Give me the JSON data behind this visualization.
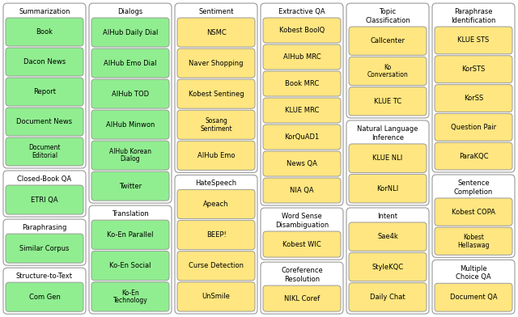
{
  "green_color": "#90EE90",
  "yellow_color": "#FFE680",
  "bg_color": "#FFFFFF",
  "figsize": [
    6.4,
    3.92
  ],
  "dpi": 100,
  "sections": [
    {
      "title": "Summarization",
      "col": 0,
      "row": 0,
      "item_color": "#90EE90",
      "items": [
        "Book",
        "Dacon News",
        "Report",
        "Document News",
        "Document\nEditorial"
      ]
    },
    {
      "title": "Closed-Book QA",
      "col": 0,
      "row": 1,
      "item_color": "#90EE90",
      "items": [
        "ETRI QA"
      ]
    },
    {
      "title": "Paraphrasing",
      "col": 0,
      "row": 2,
      "item_color": "#90EE90",
      "items": [
        "Similar Corpus"
      ]
    },
    {
      "title": "Structure-to-Text",
      "col": 0,
      "row": 3,
      "item_color": "#90EE90",
      "items": [
        "Com Gen"
      ]
    },
    {
      "title": "Dialogs",
      "col": 1,
      "row": 0,
      "item_color": "#90EE90",
      "items": [
        "AIHub Daily Dial",
        "AIHub Emo Dial",
        "AIHub TOD",
        "AIHub Minwon",
        "AIHub Korean\nDialog",
        "Twitter"
      ]
    },
    {
      "title": "Translation",
      "col": 1,
      "row": 1,
      "item_color": "#90EE90",
      "items": [
        "Ko-En Parallel",
        "Ko-En Social",
        "Ko-En\nTechnology"
      ]
    },
    {
      "title": "Sentiment",
      "col": 2,
      "row": 0,
      "item_color": "#FFE680",
      "items": [
        "NSMC",
        "Naver Shopping",
        "Kobest Sentineg",
        "Sosang\nSentiment",
        "AIHub Emo"
      ]
    },
    {
      "title": "HateSpeech",
      "col": 2,
      "row": 1,
      "item_color": "#FFE680",
      "items": [
        "Apeach",
        "BEEP!",
        "Curse Detection",
        "UnSmile"
      ]
    },
    {
      "title": "Extractive QA",
      "col": 3,
      "row": 0,
      "item_color": "#FFE680",
      "items": [
        "Kobest BoolQ",
        "AIHub MRC",
        "Book MRC",
        "KLUE MRC",
        "KorQuAD1",
        "News QA",
        "NIA QA"
      ]
    },
    {
      "title": "Word Sense\nDisambiguation",
      "col": 3,
      "row": 1,
      "item_color": "#FFE680",
      "items": [
        "Kobest WIC"
      ]
    },
    {
      "title": "Coreference\nResolution",
      "col": 3,
      "row": 2,
      "item_color": "#FFE680",
      "items": [
        "NIKL Coref"
      ]
    },
    {
      "title": "Topic\nClassification",
      "col": 4,
      "row": 0,
      "item_color": "#FFE680",
      "items": [
        "Callcenter",
        "Ko\nConversation",
        "KLUE TC"
      ]
    },
    {
      "title": "Natural Language\nInference",
      "col": 4,
      "row": 1,
      "item_color": "#FFE680",
      "items": [
        "KLUE NLI",
        "KorNLI"
      ]
    },
    {
      "title": "Intent",
      "col": 4,
      "row": 2,
      "item_color": "#FFE680",
      "items": [
        "Sae4k",
        "StyleKQC",
        "Daily Chat"
      ]
    },
    {
      "title": "Paraphrase\nIdentification",
      "col": 5,
      "row": 0,
      "item_color": "#FFE680",
      "items": [
        "KLUE STS",
        "KorSTS",
        "KorSS",
        "Question Pair",
        "ParaKQC"
      ]
    },
    {
      "title": "Sentence\nCompletion",
      "col": 5,
      "row": 1,
      "item_color": "#FFE680",
      "items": [
        "Kobest COPA",
        "Kobest\nHellaswag"
      ]
    },
    {
      "title": "Multiple\nChoice QA",
      "col": 5,
      "row": 2,
      "item_color": "#FFE680",
      "items": [
        "Document QA"
      ]
    }
  ]
}
